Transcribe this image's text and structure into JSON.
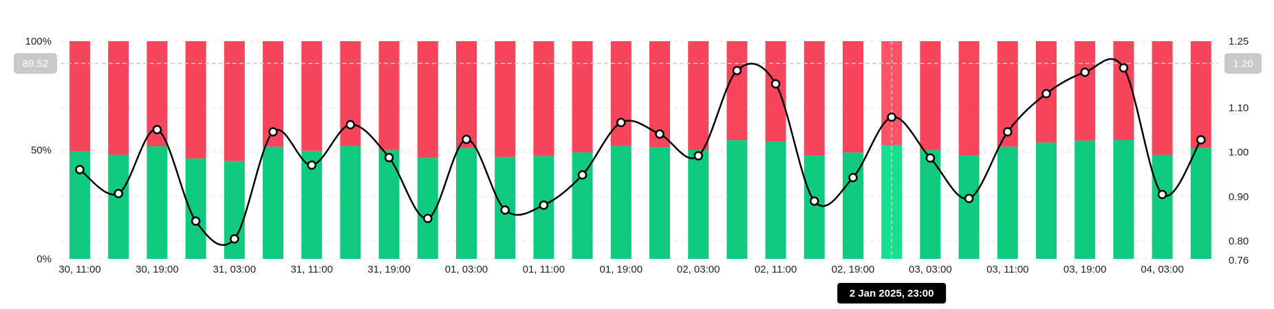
{
  "chart_data": {
    "type": "bar",
    "stacked_percent": true,
    "categories": [
      "30 Dec 11:00",
      "30 Dec 15:00",
      "30 Dec 19:00",
      "30 Dec 23:00",
      "31 Dec 03:00",
      "31 Dec 07:00",
      "31 Dec 11:00",
      "31 Dec 15:00",
      "31 Dec 19:00",
      "31 Dec 23:00",
      "01 Jan 03:00",
      "01 Jan 07:00",
      "01 Jan 11:00",
      "01 Jan 15:00",
      "01 Jan 19:00",
      "01 Jan 23:00",
      "02 Jan 03:00",
      "02 Jan 07:00",
      "02 Jan 11:00",
      "02 Jan 15:00",
      "02 Jan 19:00",
      "02 Jan 23:00",
      "03 Jan 03:00",
      "03 Jan 07:00",
      "03 Jan 11:00",
      "03 Jan 15:00",
      "03 Jan 19:00",
      "03 Jan 23:00",
      "04 Jan 03:00",
      "04 Jan 07:00"
    ],
    "series": [
      {
        "type": "bar",
        "axis": "left",
        "color": "#10ca80",
        "values": [
          49.3,
          47.8,
          51.7,
          46.1,
          44.9,
          51.5,
          49.6,
          51.8,
          49.9,
          46.3,
          50.9,
          46.8,
          47.2,
          48.9,
          51.8,
          51.3,
          50.0,
          54.5,
          53.8,
          47.4,
          48.8,
          52.2,
          49.9,
          47.5,
          51.5,
          53.4,
          54.3,
          54.6,
          47.8,
          50.9
        ]
      },
      {
        "type": "bar",
        "axis": "left",
        "color": "#f7465c",
        "values": [
          50.7,
          52.2,
          48.3,
          53.9,
          55.1,
          48.5,
          50.4,
          48.2,
          50.1,
          53.7,
          49.1,
          53.2,
          52.8,
          51.1,
          48.2,
          48.7,
          50.0,
          45.5,
          46.2,
          52.6,
          51.2,
          47.8,
          50.1,
          52.5,
          48.5,
          46.6,
          45.7,
          45.4,
          52.2,
          49.1
        ]
      },
      {
        "type": "line",
        "axis": "right",
        "color": "#000000",
        "values": [
          0.961,
          0.907,
          1.051,
          0.845,
          0.805,
          1.046,
          0.971,
          1.062,
          0.988,
          0.851,
          1.029,
          0.87,
          0.881,
          0.949,
          1.067,
          1.041,
          0.992,
          1.184,
          1.154,
          0.89,
          0.943,
          1.079,
          0.987,
          0.896,
          1.046,
          1.132,
          1.18,
          1.19,
          0.905,
          1.028
        ]
      }
    ],
    "x_tick_labels": [
      "30, 11:00",
      "30, 19:00",
      "31, 03:00",
      "31, 11:00",
      "31, 19:00",
      "01, 03:00",
      "01, 11:00",
      "01, 19:00",
      "02, 03:00",
      "02, 11:00",
      "02, 19:00",
      "03, 03:00",
      "03, 11:00",
      "03, 19:00",
      "04, 03:00"
    ],
    "left_axis": {
      "ylim": [
        0,
        100
      ],
      "ticks": [
        "0%",
        "50%",
        "100%"
      ]
    },
    "right_axis": {
      "ylim": [
        0.76,
        1.25
      ],
      "ticks": [
        "0.76",
        "0.80",
        "0.90",
        "1.00",
        "1.10",
        "1.25"
      ]
    },
    "grid": true,
    "crosshair": {
      "index": 21,
      "left_value": "89.52",
      "right_value": "1.20",
      "tooltip": "2 Jan 2025, 23:00"
    },
    "highlight_colors": {
      "green": "#15e08f",
      "red": "#ff5367"
    }
  }
}
